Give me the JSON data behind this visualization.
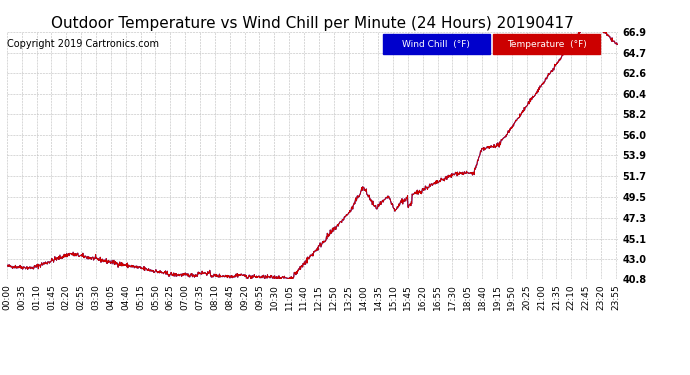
{
  "title": "Outdoor Temperature vs Wind Chill per Minute (24 Hours) 20190417",
  "copyright_text": "Copyright 2019 Cartronics.com",
  "legend_wind_chill": "Wind Chill  (°F)",
  "legend_temperature": "Temperature  (°F)",
  "wind_chill_color": "#0000cc",
  "temperature_color": "#cc0000",
  "legend_wind_chill_bg": "#0000cc",
  "legend_temperature_bg": "#cc0000",
  "ylim": [
    40.8,
    66.9
  ],
  "yticks": [
    40.8,
    43.0,
    45.1,
    47.3,
    49.5,
    51.7,
    53.9,
    56.0,
    58.2,
    60.4,
    62.6,
    64.7,
    66.9
  ],
  "background_color": "#ffffff",
  "grid_color": "#bbbbbb",
  "title_fontsize": 11,
  "copyright_fontsize": 7,
  "tick_fontsize": 7,
  "num_minutes": 1440,
  "x_tick_interval": 35
}
